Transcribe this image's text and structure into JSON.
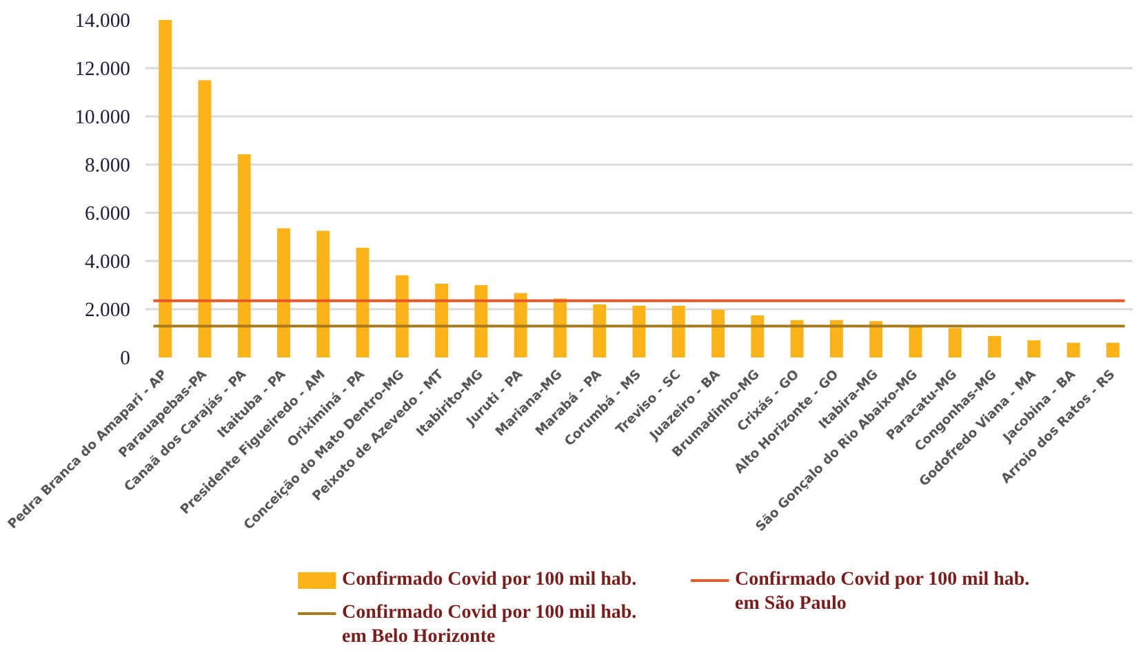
{
  "chart_data": {
    "type": "bar",
    "categories": [
      "Pedra Branca do Amapari - AP",
      "Parauapebas-PA",
      "Canaã dos Carajás - PA",
      "Itaituba - PA",
      "Presidente Figueiredo - AM",
      "Oriximiná - PA",
      "Conceição do Mato Dentro-MG",
      "Peixoto de Azevedo - MT",
      "Itabirito-MG",
      "Juruti - PA",
      "Mariana-MG",
      "Marabá - PA",
      "Corumbá - MS",
      "Treviso - SC",
      "Juazeiro - BA",
      "Brumadinho-MG",
      "Crixás - GO",
      "Alto Horizonte - GO",
      "Itabira-MG",
      "São Gonçalo do Rio Abaixo-MG",
      "Paracatu-MG",
      "Congonhas-MG",
      "Godofredo Viana - MA",
      "Jacobina - BA",
      "Arroio dos Ratos - RS"
    ],
    "series": [
      {
        "name": "Confirmado Covid por 100 mil hab.",
        "color": "#fbb31a",
        "values": [
          14000,
          11500,
          8430,
          5360,
          5250,
          4550,
          3410,
          3060,
          3000,
          2670,
          2440,
          2200,
          2140,
          2140,
          1980,
          1740,
          1550,
          1550,
          1510,
          1340,
          1220,
          890,
          710,
          610,
          610
        ]
      }
    ],
    "ref_lines": [
      {
        "axis": "y",
        "value": 2350,
        "label": "Confirmado Covid por 100 mil hab.\nem São Paulo",
        "color": "#e8592a"
      },
      {
        "axis": "y",
        "value": 1300,
        "label": "Confirmado Covid por 100 mil hab.\nem Belo Horizonte",
        "color": "#a87a1e"
      }
    ],
    "ylim": [
      0,
      14000
    ],
    "yticks": [
      {
        "value": 0,
        "label": "0"
      },
      {
        "value": 2000,
        "label": "2.000"
      },
      {
        "value": 4000,
        "label": "4.000"
      },
      {
        "value": 6000,
        "label": "6.000"
      },
      {
        "value": 8000,
        "label": "8.000"
      },
      {
        "value": 10000,
        "label": "10.000"
      },
      {
        "value": 12000,
        "label": "12.000"
      },
      {
        "value": 14000,
        "label": "14.000"
      }
    ],
    "grid": "y",
    "legend": "bottom"
  }
}
